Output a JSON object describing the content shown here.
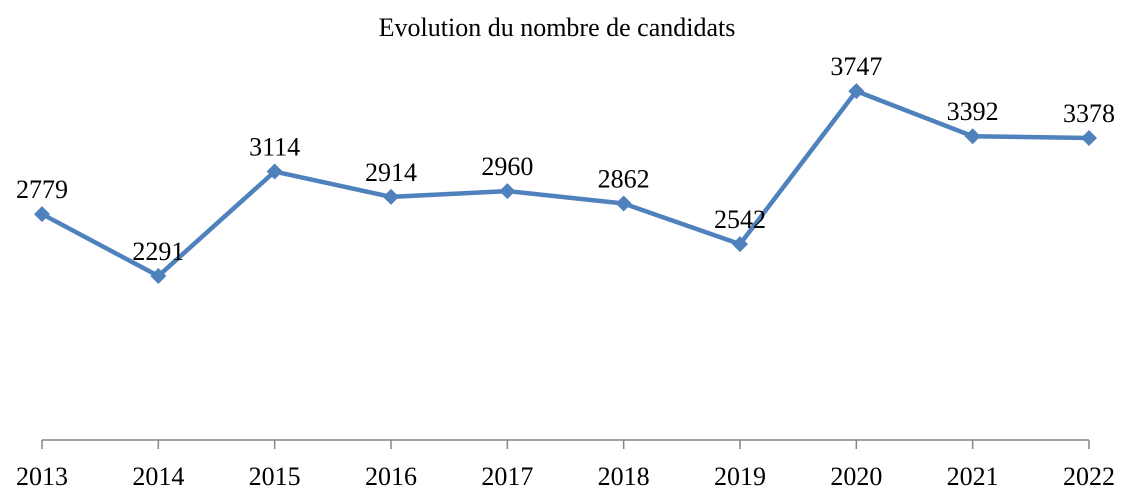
{
  "chart_data": {
    "type": "line",
    "title": "Evolution du nombre de candidats",
    "categories": [
      "2013",
      "2014",
      "2015",
      "2016",
      "2017",
      "2018",
      "2019",
      "2020",
      "2021",
      "2022"
    ],
    "series": [
      {
        "name": "Candidats",
        "color": "#4f81bd",
        "values": [
          2779,
          2291,
          3114,
          2914,
          2960,
          2862,
          2542,
          3747,
          3392,
          3378
        ]
      }
    ],
    "ylim": [
      1000,
      4000
    ]
  }
}
